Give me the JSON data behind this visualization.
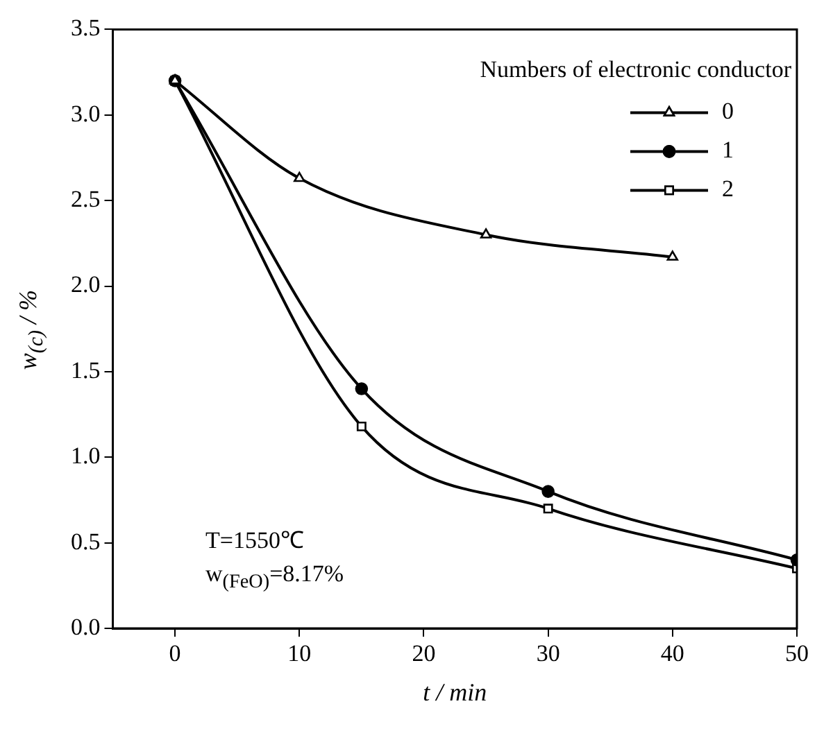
{
  "chart_data": {
    "type": "line",
    "xlabel": "t / min",
    "ylabel": "w$_{(c)}$ / %",
    "legend_title": "Numbers of electronic conductor",
    "legend": "top right",
    "xlim": [
      -5,
      50
    ],
    "xticks": [
      0,
      10,
      20,
      30,
      40,
      50
    ],
    "ylim": [
      0,
      3.5
    ],
    "yticks": [
      {
        "value": 0,
        "label": "0.0"
      },
      0.5,
      {
        "value": 1,
        "label": "1.0"
      },
      1.5,
      {
        "value": 2,
        "label": "2.0"
      },
      2.5,
      {
        "value": 3,
        "label": "3.0"
      },
      3.5
    ],
    "grid": false,
    "annotations": [
      "T=1550℃",
      "w$_{(FeO)}$=8.17%"
    ],
    "series": [
      {
        "name": "0",
        "color": "#000000",
        "marker": "triangle",
        "x": [
          0,
          10,
          25,
          40
        ],
        "values": [
          3.2,
          2.63,
          2.3,
          2.17
        ]
      },
      {
        "name": "1",
        "color": "#000000",
        "marker": "circle",
        "x": [
          0,
          15,
          30,
          50
        ],
        "values": [
          3.2,
          1.4,
          0.8,
          0.4
        ]
      },
      {
        "name": "2",
        "color": "#000000",
        "marker": "square",
        "x": [
          0,
          15,
          30,
          50
        ],
        "values": [
          3.2,
          1.18,
          0.7,
          0.35
        ]
      }
    ]
  }
}
